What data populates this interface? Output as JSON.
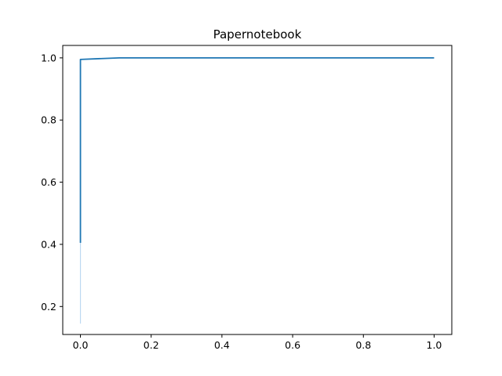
{
  "chart_data": {
    "type": "line",
    "title": "Papernotebook",
    "xlabel": "",
    "ylabel": "",
    "xlim": [
      -0.05,
      1.05
    ],
    "ylim": [
      0.11,
      1.04
    ],
    "x_ticks": [
      "0.0",
      "0.2",
      "0.4",
      "0.6",
      "0.8",
      "1.0"
    ],
    "y_ticks": [
      "0.2",
      "0.4",
      "0.6",
      "0.8",
      "1.0"
    ],
    "grid": false,
    "legend": false,
    "series": [
      {
        "color": "#1f77b4",
        "x": [
          0.0,
          0.0,
          0.0,
          0.11,
          1.0
        ],
        "y": [
          0.405,
          0.995,
          0.995,
          1.0,
          1.0
        ]
      }
    ],
    "shaded_region": {
      "color": "#bcd9f2",
      "x": [
        0.0,
        0.0
      ],
      "y": [
        0.145,
        0.405
      ]
    }
  }
}
